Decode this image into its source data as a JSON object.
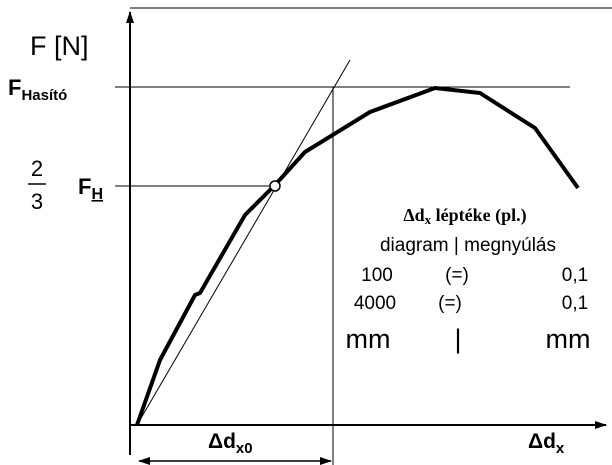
{
  "axes": {
    "y_label": "F [N]",
    "x_label": "Δd",
    "x_label_sub": "x"
  },
  "lines": {
    "f_max": "F",
    "f_max_sub": "Hasító",
    "fraction_num": "2",
    "fraction_den": "3",
    "f_h": "F",
    "f_h_sub": "H",
    "dx0": "Δd",
    "dx0_sub": "x0"
  },
  "scale_box": {
    "title": "Δd",
    "title_sub": "x",
    "title_rest": " léptéke (pl.)",
    "header": "diagram | megnyúlás",
    "rows": [
      [
        "100",
        "(=)",
        "0,1"
      ],
      [
        "4000",
        "(=)",
        "0,1"
      ],
      [
        "mm",
        "|",
        "mm"
      ]
    ]
  }
}
